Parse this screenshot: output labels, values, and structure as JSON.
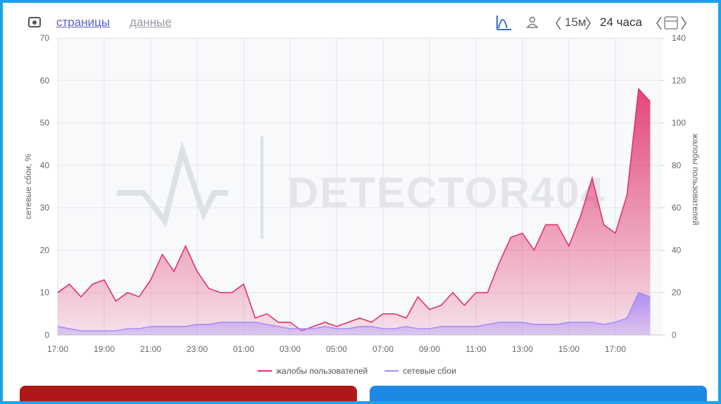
{
  "ui": {
    "tabs": [
      "страницы",
      "данные"
    ],
    "interval": "15м",
    "range": "24 часа",
    "watermark": "DETECTOR404"
  },
  "chart_data": {
    "type": "line",
    "x": [
      0,
      0.5,
      1,
      1.5,
      2,
      2.5,
      3,
      3.5,
      4,
      4.5,
      5,
      5.5,
      6,
      6.5,
      7,
      7.5,
      8,
      8.5,
      9,
      9.5,
      10,
      10.5,
      11,
      11.5,
      12,
      12.5,
      13,
      13.5,
      14,
      14.5,
      15,
      15.5,
      16,
      16.5,
      17,
      17.5,
      18,
      18.5,
      19,
      19.5,
      20,
      20.5,
      21,
      21.5,
      22,
      22.5,
      23,
      23.5,
      24,
      24.5,
      25,
      25.5
    ],
    "xlim": [
      0,
      26
    ],
    "xticks": [
      {
        "value": 0,
        "label": "17:00"
      },
      {
        "value": 2,
        "label": "19:00"
      },
      {
        "value": 4,
        "label": "21:00"
      },
      {
        "value": 6,
        "label": "23:00"
      },
      {
        "value": 8,
        "label": "01:00"
      },
      {
        "value": 10,
        "label": "03:00"
      },
      {
        "value": 12,
        "label": "05:00"
      },
      {
        "value": 14,
        "label": "07:00"
      },
      {
        "value": 16,
        "label": "09:00"
      },
      {
        "value": 18,
        "label": "11:00"
      },
      {
        "value": 20,
        "label": "13:00"
      },
      {
        "value": 22,
        "label": "15:00"
      },
      {
        "value": 24,
        "label": "17:00"
      }
    ],
    "ylabel": "сетевые сбои, %",
    "ylim": [
      0,
      70
    ],
    "yticks": [
      0,
      10,
      20,
      30,
      40,
      50,
      60,
      70
    ],
    "y2label": "жалобы пользователей",
    "y2lim": [
      0,
      140
    ],
    "y2ticks": [
      0,
      20,
      40,
      60,
      80,
      100,
      120,
      140
    ],
    "grid": true,
    "legend": "bottom",
    "series": [
      {
        "name": "жалобы пользователей",
        "color": "#e0336b",
        "axis": "y2",
        "values": [
          20,
          24,
          18,
          24,
          26,
          16,
          20,
          18,
          26,
          38,
          30,
          42,
          30,
          22,
          20,
          20,
          24,
          8,
          10,
          6,
          6,
          2,
          4,
          6,
          4,
          6,
          8,
          6,
          10,
          10,
          8,
          18,
          12,
          14,
          20,
          14,
          20,
          20,
          34,
          46,
          48,
          40,
          52,
          52,
          42,
          56,
          74,
          52,
          48,
          66,
          116,
          110
        ]
      },
      {
        "name": "сетевые сбои",
        "color": "#a78bfa",
        "values": [
          2,
          1.5,
          1,
          1,
          1,
          1,
          1.5,
          1.5,
          2,
          2,
          2,
          2,
          2.5,
          2.5,
          3,
          3,
          3,
          3,
          2.5,
          2,
          1.5,
          1.5,
          1.5,
          2,
          1.5,
          1.5,
          2,
          2,
          1.5,
          1.5,
          2,
          1.5,
          1.5,
          2,
          2,
          2,
          2,
          2.5,
          3,
          3,
          3,
          2.5,
          2.5,
          2.5,
          3,
          3,
          3,
          2.5,
          3,
          4,
          10,
          9
        ]
      }
    ]
  }
}
